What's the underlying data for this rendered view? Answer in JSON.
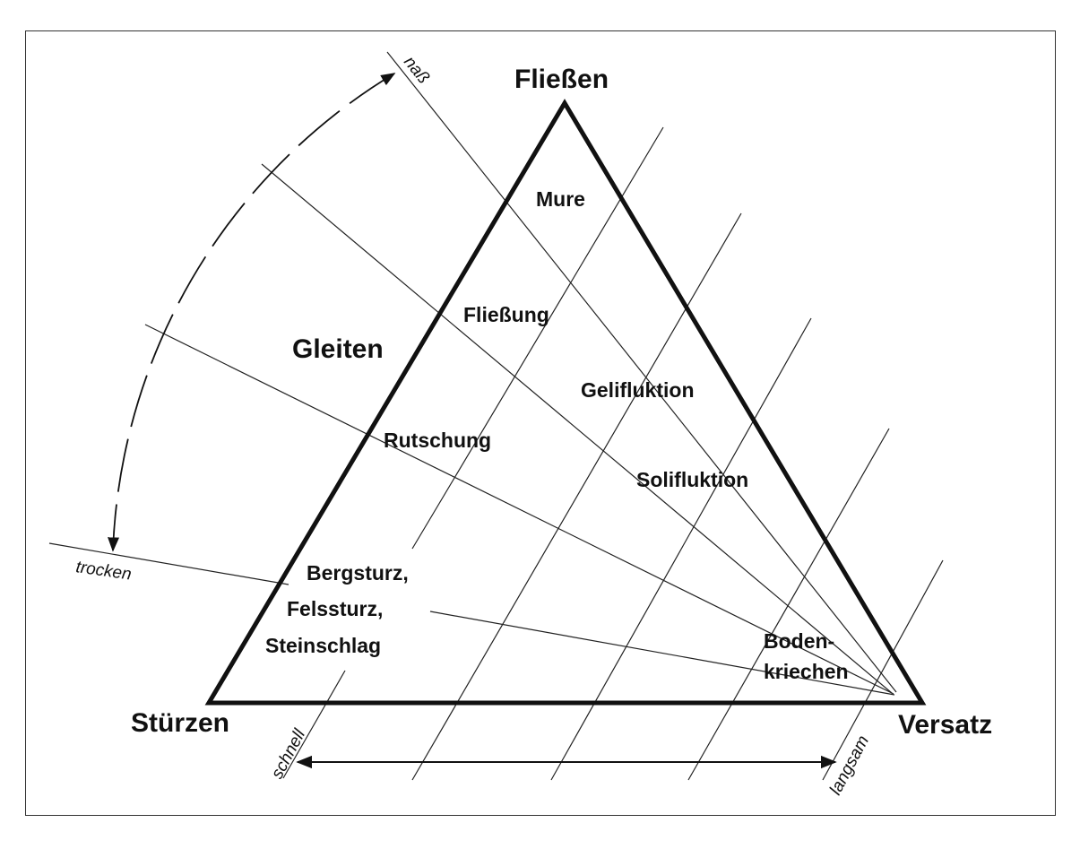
{
  "corners": {
    "top": "Fließen",
    "left": "Gleiten",
    "bottom_left": "Stürzen",
    "bottom_right": "Versatz"
  },
  "processes": {
    "mure": "Mure",
    "fliessung": "Fließung",
    "gelifluktion": "Gelifluktion",
    "rutschung": "Rutschung",
    "solifluktion": "Solifluktion",
    "bergsturz": [
      "Bergsturz,",
      "Felssturz,",
      "Steinschlag"
    ],
    "bodenkriechen": [
      "Boden-",
      "kriechen"
    ]
  },
  "axes": {
    "moisture_wet": "naß",
    "moisture_dry": "trocken",
    "speed_fast": "schnell",
    "speed_slow": "langsam"
  }
}
